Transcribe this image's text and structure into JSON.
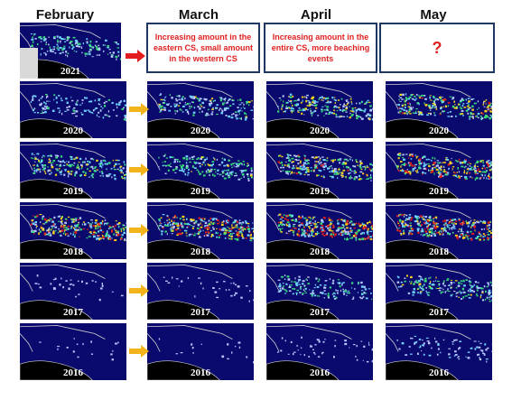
{
  "headers": [
    "February",
    "March",
    "April",
    "May"
  ],
  "notes": {
    "march": "Increasing amount in the eastern CS, small amount in the western CS",
    "april": "Increasing amount in the entire CS, more beaching events",
    "may": "?"
  },
  "years": [
    "2021",
    "2020",
    "2019",
    "2018",
    "2017",
    "2016"
  ],
  "colors": {
    "ocean": "#0a0a6e",
    "note_text": "#e02020",
    "note_border": "#1f3864",
    "arrow_2021": "#e21d1d",
    "arrow_other": "#f2b31b"
  }
}
